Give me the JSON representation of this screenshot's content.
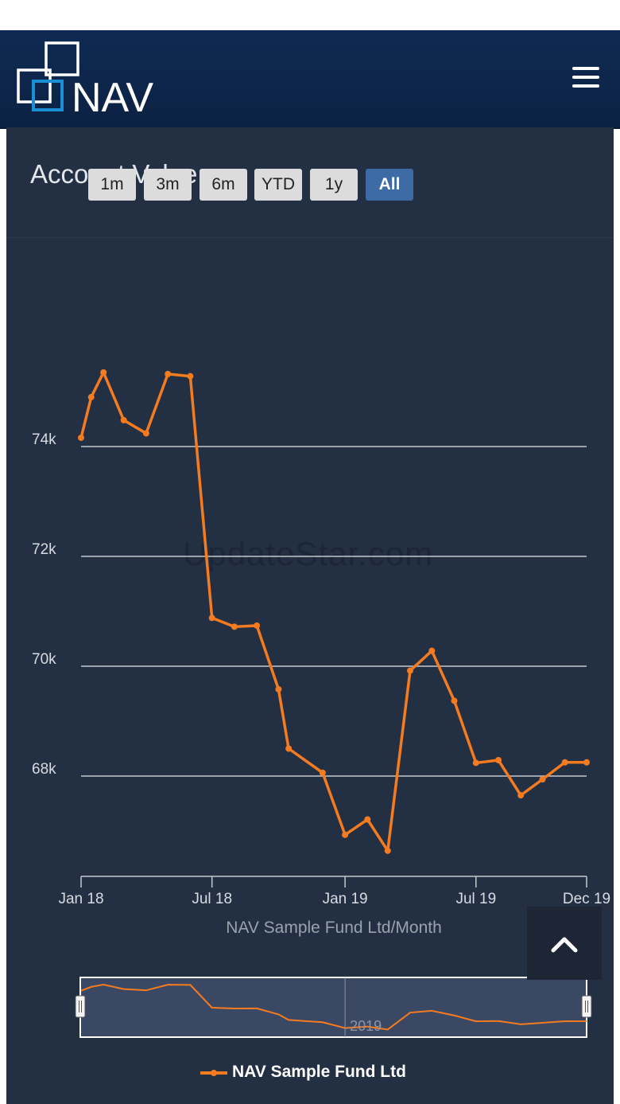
{
  "header": {
    "logo_text": "NAV"
  },
  "panel": {
    "title": "Account Value"
  },
  "range_selector": {
    "buttons": [
      "1m",
      "3m",
      "6m",
      "YTD",
      "1y",
      "All"
    ],
    "active": "All"
  },
  "watermark": "UpdateStar.com",
  "navigator": {
    "label": "2019"
  },
  "colors": {
    "series": "#f57b20",
    "background": "#232f43",
    "active_button": "#3e6aa6"
  },
  "chart_data": {
    "type": "line",
    "title": "Account Value",
    "xlabel": "NAV Sample Fund Ltd/Month",
    "ylabel": "",
    "x_ticks": [
      "Jan 18",
      "Jul 18",
      "Jan 19",
      "Jul 19",
      "Dec 19"
    ],
    "y_ticks": [
      "68k",
      "70k",
      "72k",
      "74k"
    ],
    "ylim": [
      66200,
      75800
    ],
    "grid": true,
    "legend": "bottom-center",
    "series": [
      {
        "name": "NAV Sample Fund Ltd",
        "x": [
          "2018-01-01",
          "2018-01-15",
          "2018-02-01",
          "2018-03-01",
          "2018-04-01",
          "2018-05-01",
          "2018-06-01",
          "2018-07-01",
          "2018-08-01",
          "2018-09-01",
          "2018-10-01",
          "2018-10-15",
          "2018-12-01",
          "2019-01-01",
          "2019-02-01",
          "2019-03-01",
          "2019-04-01",
          "2019-05-01",
          "2019-06-01",
          "2019-07-01",
          "2019-08-01",
          "2019-09-01",
          "2019-10-01",
          "2019-11-01",
          "2019-12-01"
        ],
        "values": [
          74160,
          74900,
          75350,
          74480,
          74240,
          75320,
          75280,
          70880,
          70720,
          70740,
          69580,
          68500,
          68060,
          66930,
          67210,
          66640,
          69920,
          70280,
          69370,
          68240,
          68290,
          67650,
          67940,
          68250,
          68250
        ]
      }
    ]
  }
}
